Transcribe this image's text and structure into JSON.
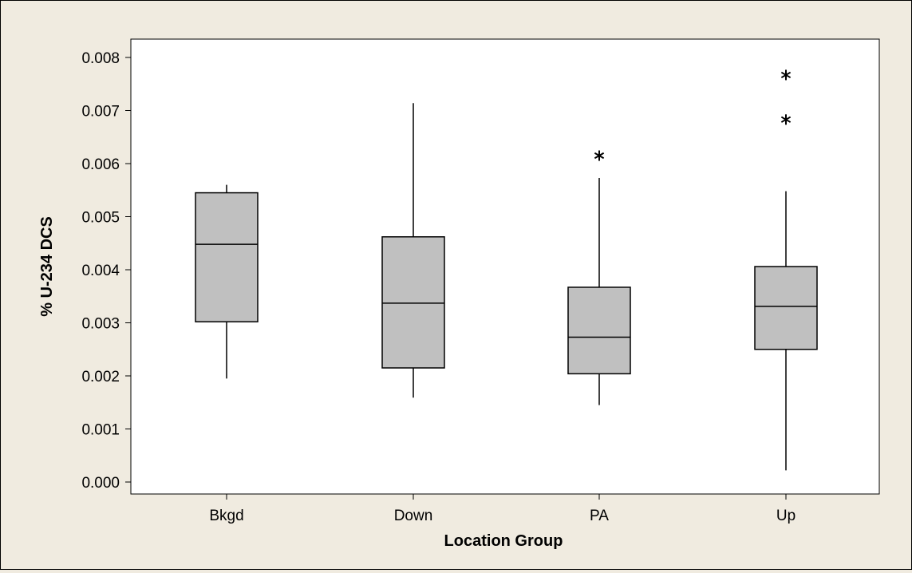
{
  "chart_data": {
    "type": "boxplot",
    "xlabel": "Location Group",
    "ylabel": "% U-234 DCS",
    "ylim": [
      0.0,
      0.008
    ],
    "yticks": [
      "0.000",
      "0.001",
      "0.002",
      "0.003",
      "0.004",
      "0.005",
      "0.006",
      "0.007",
      "0.008"
    ],
    "grid": false,
    "colors": {
      "box_fill": "#c0c0c0",
      "plot_bg": "#ffffff",
      "figure_bg": "#f0ebe0"
    },
    "categories": [
      "Bkgd",
      "Down",
      "PA",
      "Up"
    ],
    "boxes": [
      {
        "category": "Bkgd",
        "whisker_low": 0.00195,
        "q1": 0.00302,
        "median": 0.00448,
        "q3": 0.00545,
        "whisker_high": 0.0056,
        "outliers": []
      },
      {
        "category": "Down",
        "whisker_low": 0.00159,
        "q1": 0.00215,
        "median": 0.00337,
        "q3": 0.00462,
        "whisker_high": 0.00714,
        "outliers": []
      },
      {
        "category": "PA",
        "whisker_low": 0.00145,
        "q1": 0.00204,
        "median": 0.00273,
        "q3": 0.00367,
        "whisker_high": 0.00573,
        "outliers": [
          0.00615
        ]
      },
      {
        "category": "Up",
        "whisker_low": 0.00022,
        "q1": 0.0025,
        "median": 0.00331,
        "q3": 0.00406,
        "whisker_high": 0.00548,
        "outliers": [
          0.00683,
          0.00767
        ]
      }
    ]
  }
}
